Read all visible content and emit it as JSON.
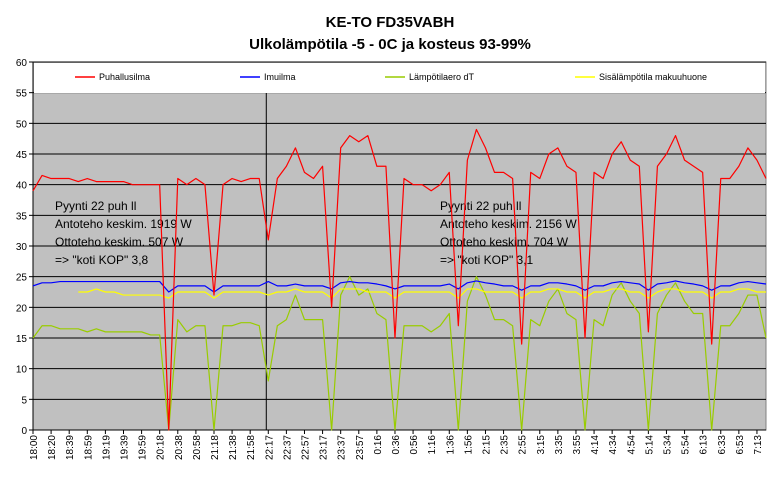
{
  "chart_data": {
    "type": "line",
    "title": "KE-TO FD35VABH",
    "subtitle": "Ulkolämpötila -5 - 0C ja kosteus 93-99%",
    "categories": [
      "18:00",
      null,
      "18:20",
      null,
      "18:39",
      null,
      "18:59",
      null,
      "19:19",
      null,
      "19:39",
      null,
      "19:59",
      null,
      "20:18",
      null,
      "20:38",
      null,
      "20:58",
      null,
      "21:18",
      null,
      "21:38",
      null,
      "21:58",
      null,
      "22:17",
      null,
      "22:37",
      null,
      "22:57",
      null,
      "23:17",
      null,
      "23:37",
      null,
      "23:57",
      null,
      "0:16",
      null,
      "0:36",
      null,
      "0:56",
      null,
      "1:16",
      null,
      "1:36",
      null,
      "1:56",
      null,
      "2:15",
      null,
      "2:35",
      null,
      "2:55",
      null,
      "3:15",
      null,
      "3:35",
      null,
      "3:55",
      null,
      "4:14",
      null,
      "4:34",
      null,
      "4:54",
      null,
      "5:14",
      null,
      "5:34",
      null,
      "5:54",
      null,
      "6:13",
      null,
      "6:33",
      null,
      "6:53",
      null,
      "7:13",
      null
    ],
    "series": [
      {
        "name": "Puhallusilma",
        "color": "#ff0000",
        "values": [
          39,
          41.5,
          41,
          41,
          41,
          40.5,
          41,
          40.5,
          40.5,
          40.5,
          40.5,
          40,
          40,
          40,
          40,
          0,
          41,
          40,
          41,
          40,
          22,
          40,
          41,
          40.5,
          41,
          41,
          31,
          41,
          43,
          46,
          42,
          41,
          43,
          20,
          46,
          48,
          47,
          48,
          43,
          43,
          15,
          41,
          40,
          40,
          39,
          40,
          42,
          17,
          44,
          49,
          46,
          42,
          42,
          41,
          14,
          42,
          41,
          45,
          46,
          43,
          42,
          15,
          42,
          41,
          45,
          47,
          44,
          43,
          16,
          43,
          45,
          48,
          44,
          43,
          42,
          14,
          41,
          41,
          43,
          46,
          44,
          41
        ]
      },
      {
        "name": "Imuilma",
        "color": "#0000ff",
        "values": [
          23.5,
          24,
          24,
          24.2,
          24.2,
          24.2,
          24.2,
          24.2,
          24.2,
          24.2,
          24.2,
          24.2,
          24.2,
          24.2,
          24.2,
          22.5,
          23.5,
          23.5,
          23.5,
          23.5,
          22.5,
          23.5,
          23.5,
          23.5,
          23.5,
          23.5,
          24.2,
          23.5,
          23.5,
          23.8,
          23.5,
          23.5,
          23.5,
          23,
          24,
          24.2,
          24,
          24,
          23.8,
          23.5,
          23,
          23.5,
          23.5,
          23.5,
          23.5,
          23.5,
          23.8,
          23,
          24,
          24.3,
          24,
          23.8,
          23.5,
          23.5,
          22.8,
          23.5,
          23.5,
          24,
          24,
          23.8,
          23.5,
          22.8,
          23.5,
          23.5,
          24,
          24.2,
          24,
          23.8,
          22.8,
          23.8,
          24,
          24.3,
          24,
          23.8,
          23.5,
          22.8,
          23.5,
          23.5,
          24,
          24.2,
          24,
          23.8
        ]
      },
      {
        "name": "Lämpötilaero dT",
        "color": "#99cc00",
        "values": [
          15,
          17,
          17,
          16.5,
          16.5,
          16.5,
          16,
          16.5,
          16,
          16,
          16,
          16,
          16,
          15.5,
          15.5,
          0,
          18,
          16,
          17,
          17,
          0,
          17,
          17,
          17.5,
          17.5,
          17,
          8,
          17,
          18,
          22,
          18,
          18,
          18,
          0,
          22,
          25,
          22,
          23,
          19,
          18,
          0,
          17,
          17,
          17,
          16,
          17,
          19,
          0,
          21,
          25,
          22,
          18,
          18,
          17,
          0,
          18,
          17,
          21,
          23,
          19,
          18,
          0,
          18,
          17,
          22,
          24,
          21,
          19,
          0,
          19,
          22,
          24,
          21,
          19,
          19,
          0,
          17,
          17,
          19,
          22,
          22,
          15
        ]
      },
      {
        "name": "Sisälämpötila makuuhuone",
        "color": "#ffff00",
        "values": [
          null,
          null,
          null,
          null,
          null,
          22.5,
          22.5,
          23,
          22.5,
          22.5,
          22,
          22,
          22,
          22,
          22,
          21.5,
          22.5,
          22.5,
          22.5,
          22.5,
          21.5,
          22.5,
          22.5,
          22.5,
          22.5,
          22.5,
          22,
          22.5,
          22.5,
          23,
          22.5,
          22.5,
          22.5,
          21.5,
          23,
          23,
          23,
          22.5,
          22.5,
          22.5,
          21.5,
          22.5,
          22.5,
          22.5,
          22.5,
          22.5,
          22.5,
          21.5,
          23,
          23,
          22.5,
          22.5,
          22.5,
          22.5,
          21.5,
          22.5,
          22.5,
          23,
          23,
          22.5,
          22.5,
          21.5,
          22.5,
          22.5,
          23,
          23,
          22.5,
          22.5,
          21.5,
          22.5,
          23,
          23,
          22.5,
          22.5,
          22.5,
          21.5,
          22.5,
          22.5,
          23,
          23,
          22.5,
          22.5
        ]
      }
    ],
    "ylim": [
      0,
      60
    ],
    "yticks": [
      0,
      5,
      10,
      15,
      20,
      25,
      30,
      35,
      40,
      45,
      50,
      55,
      60
    ],
    "grid": true,
    "legend": "top",
    "annotations": [
      {
        "lines": [
          "Pyynti 22 puh ll",
          "Antoteho keskim. 1919 W",
          "Ottoteho keskim. 507 W",
          "=> \"koti KOP\" 3,8"
        ]
      },
      {
        "lines": [
          "Pyynti 22 puh ll",
          "Antoteho keskim. 2156 W",
          "Ottoteho keskim. 704 W",
          "=> \"koti KOP\" 3,1"
        ]
      }
    ]
  }
}
